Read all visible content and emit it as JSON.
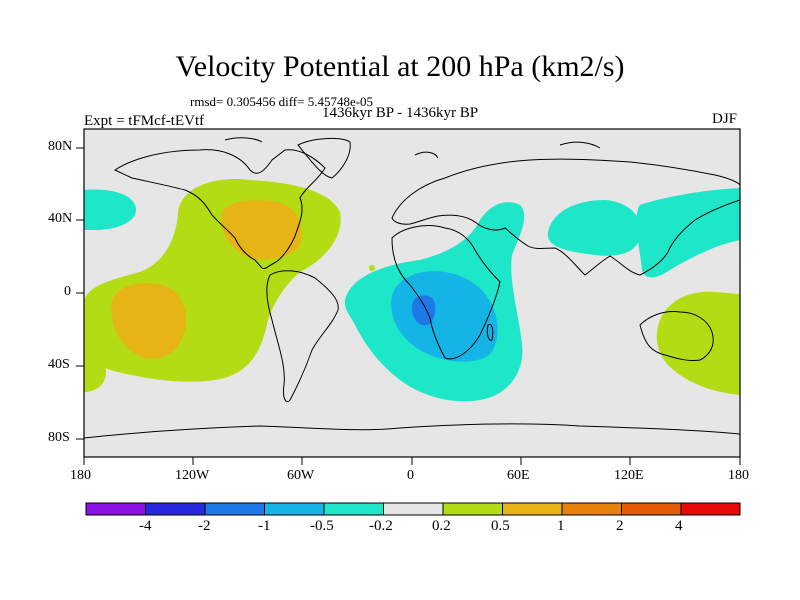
{
  "title": "Velocity Potential at 200 hPa (km2/s)",
  "stats": "rmsd= 0.305456 diff= 5.45748e-05",
  "experiment": "Expt = tFMcf-tEVtf",
  "period": "1436kyr BP - 1436kyr BP",
  "season": "DJF",
  "axes": {
    "lon_ticks": [
      "180",
      "120W",
      "60W",
      "0",
      "60E",
      "120E",
      "180"
    ],
    "lat_ticks": [
      "80N",
      "40N",
      "0",
      "40S",
      "80S"
    ]
  },
  "colorbar": {
    "labels": [
      "-4",
      "-2",
      "-1",
      "-0.5",
      "-0.2",
      "0.2",
      "0.5",
      "1",
      "2",
      "4"
    ],
    "colors": [
      "#8a14e6",
      "#2828e0",
      "#1e78e6",
      "#14b4e6",
      "#1ee6c8",
      "#e6e6e6",
      "#b4dc14",
      "#e6b414",
      "#e6820a",
      "#e65a0a",
      "#e60a0a"
    ]
  }
}
